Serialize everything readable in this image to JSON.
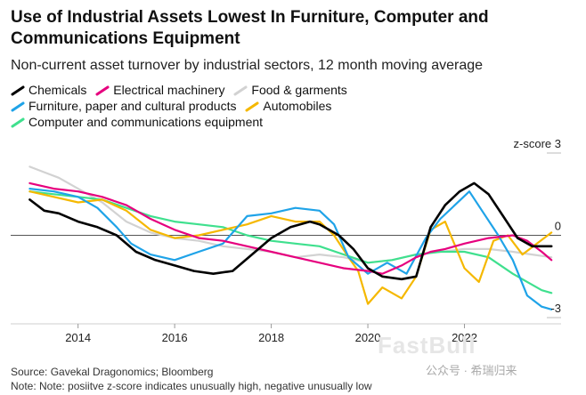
{
  "title": "Use of Industrial Assets Lowest In Furniture, Computer and Communications Equipment",
  "subtitle": "Non-current asset turnover by industrial sectors, 12 month moving average",
  "source": "Source: Gavekal Dragonomics; Bloomberg",
  "note": "Note: Note: posiitve z-score indicates unusually high, negative unusually low",
  "watermark": "FastBull",
  "wechat_text": "公众号 · 希瑞归来",
  "chart_data": {
    "type": "line",
    "title": "Use of Industrial Assets Lowest In Furniture, Computer and Communications Equipment",
    "subtitle": "Non-current asset turnover by industrial sectors, 12 month moving average",
    "ylabel": "z-score",
    "ylim": [
      -3,
      3
    ],
    "y_ticks": [
      3,
      0,
      -3
    ],
    "y_tick_labels": [
      "z-score 3",
      "0",
      "-3"
    ],
    "xlim": [
      2012.9,
      2024.0
    ],
    "x_ticks": [
      2014,
      2016,
      2018,
      2020,
      2022
    ],
    "zero_line": true,
    "series": [
      {
        "name": "Chemicals",
        "color": "#000000",
        "x": [
          2013.0,
          2013.3,
          2013.6,
          2014.0,
          2014.4,
          2014.8,
          2015.2,
          2015.6,
          2016.0,
          2016.4,
          2016.8,
          2017.2,
          2017.6,
          2018.0,
          2018.4,
          2018.8,
          2019.0,
          2019.4,
          2019.7,
          2020.0,
          2020.3,
          2020.7,
          2021.0,
          2021.3,
          2021.6,
          2021.9,
          2022.2,
          2022.5,
          2022.8,
          2023.1,
          2023.4,
          2023.6,
          2023.8
        ],
        "values": [
          1.3,
          0.9,
          0.8,
          0.5,
          0.3,
          0.0,
          -0.6,
          -0.9,
          -1.1,
          -1.3,
          -1.4,
          -1.3,
          -0.7,
          -0.1,
          0.3,
          0.5,
          0.4,
          0.0,
          -0.5,
          -1.2,
          -1.5,
          -1.6,
          -1.5,
          0.3,
          1.1,
          1.6,
          1.9,
          1.5,
          0.7,
          -0.1,
          -0.4,
          -0.4,
          -0.4
        ]
      },
      {
        "name": "Electrical machinery",
        "color": "#e6007e",
        "x": [
          2013.0,
          2013.5,
          2014.0,
          2014.5,
          2015.0,
          2015.5,
          2016.0,
          2016.5,
          2017.0,
          2017.5,
          2018.0,
          2018.5,
          2019.0,
          2019.5,
          2020.0,
          2020.3,
          2020.7,
          2021.0,
          2021.3,
          2021.6,
          2022.0,
          2022.5,
          2023.0,
          2023.3,
          2023.6,
          2023.8
        ],
        "values": [
          1.9,
          1.7,
          1.6,
          1.4,
          1.1,
          0.6,
          0.2,
          -0.1,
          -0.2,
          -0.4,
          -0.6,
          -0.8,
          -1.0,
          -1.2,
          -1.3,
          -1.4,
          -1.1,
          -0.8,
          -0.6,
          -0.5,
          -0.3,
          -0.1,
          0.0,
          -0.2,
          -0.6,
          -0.9
        ]
      },
      {
        "name": "Food & garments",
        "color": "#d2d2d2",
        "x": [
          2013.0,
          2013.3,
          2013.6,
          2014.0,
          2014.5,
          2015.0,
          2015.5,
          2016.0,
          2016.5,
          2017.0,
          2017.5,
          2018.0,
          2018.5,
          2019.0,
          2019.5,
          2020.0,
          2020.5,
          2021.0,
          2021.5,
          2022.0,
          2022.5,
          2023.0,
          2023.4,
          2023.8
        ],
        "values": [
          2.5,
          2.3,
          2.1,
          1.7,
          1.2,
          0.5,
          0.1,
          -0.1,
          -0.2,
          -0.4,
          -0.5,
          -0.6,
          -0.8,
          -0.7,
          -0.8,
          -1.0,
          -0.9,
          -0.7,
          -0.6,
          -0.5,
          -0.5,
          -0.6,
          -0.7,
          -0.8
        ]
      },
      {
        "name": "Furniture, paper and cultural products",
        "color": "#1fa3e8",
        "x": [
          2013.0,
          2013.5,
          2014.0,
          2014.4,
          2014.8,
          2015.1,
          2015.5,
          2016.0,
          2016.5,
          2017.0,
          2017.5,
          2018.0,
          2018.5,
          2019.0,
          2019.3,
          2019.6,
          2020.0,
          2020.4,
          2020.8,
          2021.2,
          2021.5,
          2021.8,
          2022.1,
          2022.4,
          2022.7,
          2023.0,
          2023.3,
          2023.6,
          2023.8
        ],
        "values": [
          1.7,
          1.6,
          1.4,
          1.0,
          0.3,
          -0.3,
          -0.7,
          -0.9,
          -0.6,
          -0.3,
          0.7,
          0.8,
          1.0,
          0.9,
          0.4,
          -0.8,
          -1.4,
          -1.0,
          -1.4,
          -0.1,
          0.6,
          1.1,
          1.6,
          0.8,
          0.0,
          -0.9,
          -2.2,
          -2.6,
          -2.7
        ]
      },
      {
        "name": "Automobiles",
        "color": "#f5b800",
        "x": [
          2013.0,
          2013.5,
          2014.0,
          2014.5,
          2015.0,
          2015.5,
          2016.0,
          2016.5,
          2017.0,
          2017.5,
          2018.0,
          2018.5,
          2019.0,
          2019.3,
          2019.6,
          2019.8,
          2020.0,
          2020.3,
          2020.7,
          2021.0,
          2021.3,
          2021.6,
          2022.0,
          2022.3,
          2022.6,
          2022.9,
          2023.2,
          2023.5,
          2023.8
        ],
        "values": [
          1.6,
          1.4,
          1.2,
          1.3,
          0.9,
          0.2,
          -0.1,
          0.0,
          0.2,
          0.4,
          0.7,
          0.5,
          0.5,
          0.0,
          -0.8,
          -1.3,
          -2.5,
          -1.9,
          -2.3,
          -1.5,
          0.2,
          0.5,
          -1.2,
          -1.7,
          -0.2,
          0.0,
          -0.7,
          -0.3,
          0.1
        ]
      },
      {
        "name": "Computer and communications equipment",
        "color": "#3fe08e",
        "x": [
          2013.0,
          2013.5,
          2014.0,
          2014.5,
          2015.0,
          2015.5,
          2016.0,
          2016.5,
          2017.0,
          2017.5,
          2018.0,
          2018.5,
          2019.0,
          2019.5,
          2020.0,
          2020.5,
          2021.0,
          2021.5,
          2022.0,
          2022.5,
          2023.0,
          2023.3,
          2023.6,
          2023.8
        ],
        "values": [
          1.6,
          1.5,
          1.4,
          1.3,
          1.0,
          0.7,
          0.5,
          0.4,
          0.3,
          0.0,
          -0.2,
          -0.3,
          -0.4,
          -0.7,
          -1.0,
          -0.9,
          -0.7,
          -0.6,
          -0.6,
          -0.8,
          -1.4,
          -1.7,
          -2.0,
          -2.1
        ]
      }
    ]
  }
}
